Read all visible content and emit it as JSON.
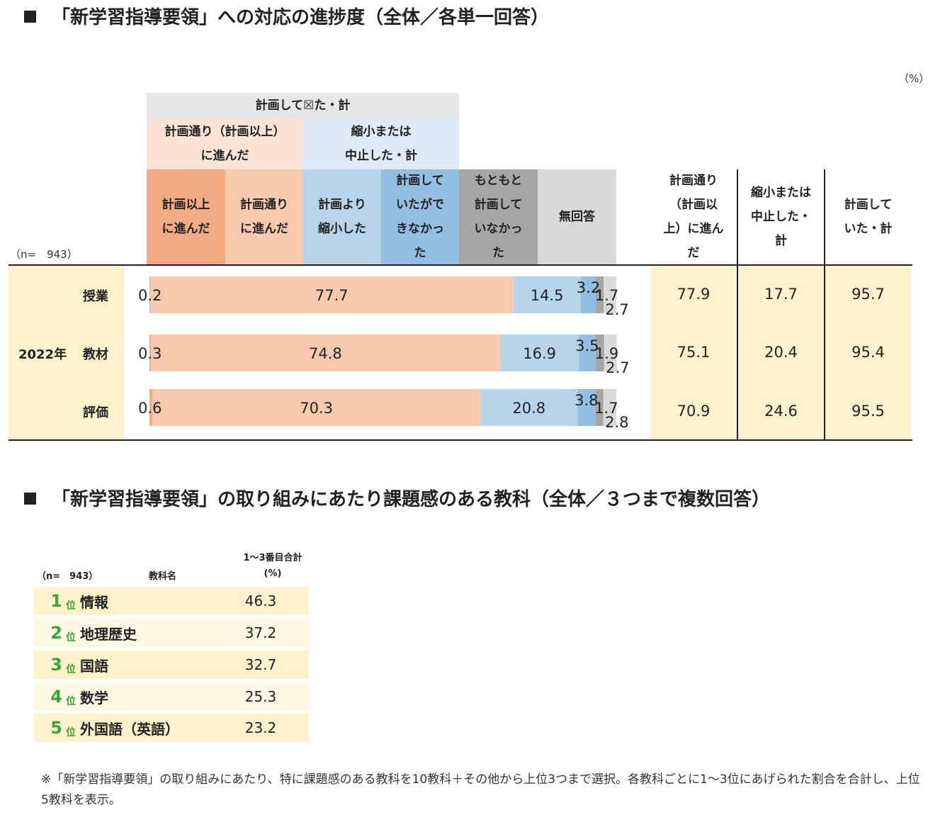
{
  "title1": "「新学習指導要領」への対応の進捗度（全体／各単一回答）",
  "unit": "（%）",
  "n_label": "（n=　943）",
  "header": {
    "group_all": "計画して☒た・計",
    "group_a": "計画通り（計画以上）\nに進んだ",
    "group_b": "縮小または\n中止した・計",
    "col1": "計画以上\nに進んだ",
    "col2": "計画通り\nに進んだ",
    "col3": "計画より\n縮小した",
    "col4": "計画して\nいたがで\nきなかっ\nた",
    "col5": "もともと\n計画して\nいなかっ\nた",
    "col6": "無回答",
    "sum1": "計画通り\n（計画以\n上）に進ん\nだ",
    "sum2": "縮小または\n中止した・\n計",
    "sum3": "計画して\nいた・計"
  },
  "year_label": "2022年",
  "colors": {
    "above_plan": "#f2aa84",
    "on_plan": "#f7c9ad",
    "reduced": "#b7d4ea",
    "not_done": "#94bfe3",
    "not_planned": "#a6a6a6",
    "no_answer": "#d9d9d9",
    "summary_bg": "#fff2cc",
    "group_bg": "#e7e7e7",
    "group_a_bg": "#fbe3d6",
    "group_b_bg": "#deebf7",
    "rank_bg_1": "#fff2cc",
    "rank_bg_2": "#fff8e5",
    "rank_green": "#3aa63a"
  },
  "chart_data": {
    "type": "bar",
    "stacked": true,
    "orientation": "horizontal",
    "categories": [
      "授業",
      "教材",
      "評価"
    ],
    "series": [
      {
        "name": "計画以上に進んだ",
        "values": [
          0.2,
          0.3,
          0.6
        ]
      },
      {
        "name": "計画通りに進んだ",
        "values": [
          77.7,
          74.8,
          70.3
        ]
      },
      {
        "name": "計画より縮小した",
        "values": [
          14.5,
          16.9,
          20.8
        ]
      },
      {
        "name": "計画していたができなかった",
        "values": [
          3.2,
          3.5,
          3.8
        ]
      },
      {
        "name": "もともと計画していなかった",
        "values": [
          1.7,
          1.9,
          1.7
        ]
      },
      {
        "name": "無回答",
        "values": [
          2.7,
          2.7,
          2.8
        ]
      }
    ],
    "value_labels": [
      [
        "0.2",
        "77.7",
        "14.5",
        "3.2",
        "1.7",
        "2.7"
      ],
      [
        "0.3",
        "74.8",
        "16.9",
        "3.5",
        "1.9",
        "2.7"
      ],
      [
        "0.6",
        "70.3",
        "20.8",
        "3.8",
        "1.7",
        "2.8"
      ]
    ],
    "summary": [
      {
        "a": "77.9",
        "b": "17.7",
        "c": "95.7"
      },
      {
        "a": "75.1",
        "b": "20.4",
        "c": "95.4"
      },
      {
        "a": "70.9",
        "b": "24.6",
        "c": "95.5"
      }
    ],
    "xlim": [
      0,
      100
    ]
  },
  "title2": "「新学習指導要領」の取り組みにあたり課題感のある教科（全体／３つまで複数回答）",
  "ranking": {
    "n_label": "（n=　943）",
    "col_name": "教科名",
    "col_total": "1〜3番目合計",
    "col_unit": "(%)",
    "pos_suffix": "位",
    "rows": [
      {
        "rank": "1",
        "name": "情報",
        "value": "46.3"
      },
      {
        "rank": "2",
        "name": "地理歴史",
        "value": "37.2"
      },
      {
        "rank": "3",
        "name": "国語",
        "value": "32.7"
      },
      {
        "rank": "4",
        "name": "数学",
        "value": "25.3"
      },
      {
        "rank": "5",
        "name": "外国語（英語）",
        "value": "23.2"
      }
    ]
  },
  "note": "※「新学習指導要領」の取り組みにあたり、特に課題感のある教科を10教科＋その他から上位3つまで選択。各教科ごとに1〜3位にあげられた割合を合計し、上位5教科を表示。"
}
